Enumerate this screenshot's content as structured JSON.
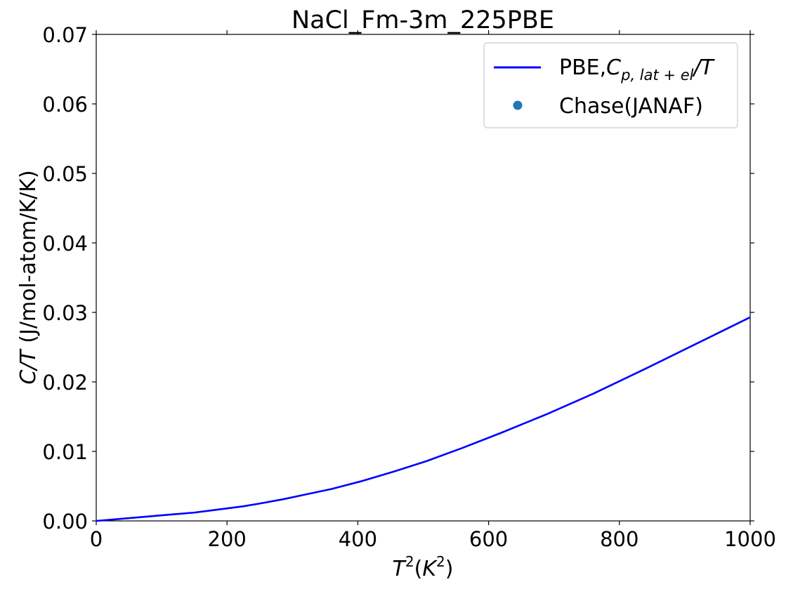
{
  "chart_data": {
    "type": "line",
    "title": "NaCl_Fm-3m_225PBE",
    "xlabel_base": "T",
    "xlabel_exp": "2",
    "xlabel_unit_base": "K",
    "xlabel_unit_exp": "2",
    "ylabel_var": "C/T",
    "ylabel_unit": " (J/mol-atom/K/K)",
    "xlim": [
      0,
      1000
    ],
    "ylim": [
      0,
      0.07
    ],
    "x_ticks": [
      "0",
      "200",
      "400",
      "600",
      "800",
      "1000"
    ],
    "y_ticks": [
      "0.00",
      "0.01",
      "0.02",
      "0.03",
      "0.04",
      "0.05",
      "0.06",
      "0.07"
    ],
    "grid": false,
    "legend_position": "top-right",
    "series": [
      {
        "name_prefix": "PBE,",
        "name_var": "C",
        "name_sub": "p, lat + el",
        "name_suffix": "/T",
        "color": "#0000ff",
        "x": [
          0,
          25,
          50,
          75,
          100,
          125,
          150,
          175,
          200,
          225,
          250,
          285,
          320,
          360,
          405,
          455,
          505,
          560,
          620,
          690,
          760,
          840,
          920,
          1000
        ],
        "y": [
          0.0,
          0.0002,
          0.0004,
          0.0006,
          0.0008,
          0.001,
          0.0012,
          0.0015,
          0.0018,
          0.0021,
          0.0025,
          0.0031,
          0.0038,
          0.0046,
          0.0057,
          0.0071,
          0.0086,
          0.0105,
          0.0127,
          0.0154,
          0.0183,
          0.0219,
          0.0256,
          0.0293
        ]
      },
      {
        "name": "Chase(JANAF)",
        "color": "#1f77b4",
        "x": [],
        "y": []
      }
    ]
  }
}
